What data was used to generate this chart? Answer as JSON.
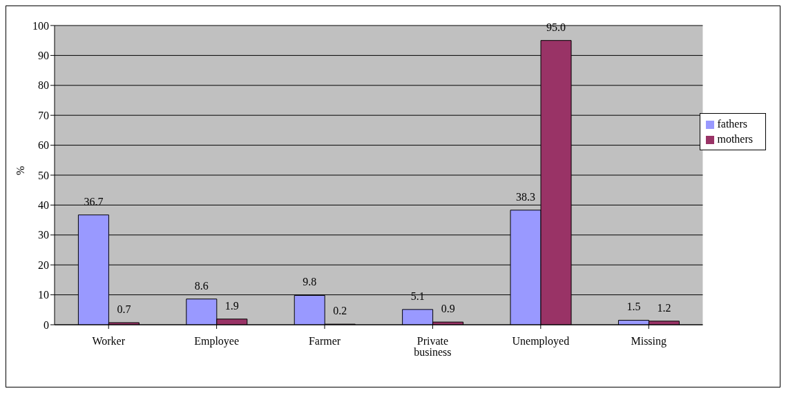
{
  "chart_data": {
    "type": "bar",
    "ylabel": "%",
    "categories": [
      "Worker",
      "Employee",
      "Farmer",
      "Private business",
      "Unemployed",
      "Missing"
    ],
    "series": [
      {
        "name": "fathers",
        "color": "#9999ff",
        "values": [
          36.7,
          8.6,
          9.8,
          5.1,
          38.3,
          1.5
        ],
        "value_labels": [
          "36.7",
          "8.6",
          "9.8",
          "5.1",
          "38.3",
          "1.5"
        ]
      },
      {
        "name": "mothers",
        "color": "#993366",
        "values": [
          0.7,
          1.9,
          0.2,
          0.9,
          95.0,
          1.2
        ],
        "value_labels": [
          "0.7",
          "1.9",
          "0.2",
          "0.9",
          "95.0",
          "1.2"
        ]
      }
    ],
    "ylim": [
      0,
      100
    ],
    "yticks": [
      0,
      10,
      20,
      30,
      40,
      50,
      60,
      70,
      80,
      90,
      100
    ],
    "grid": "y",
    "legend": "right"
  }
}
